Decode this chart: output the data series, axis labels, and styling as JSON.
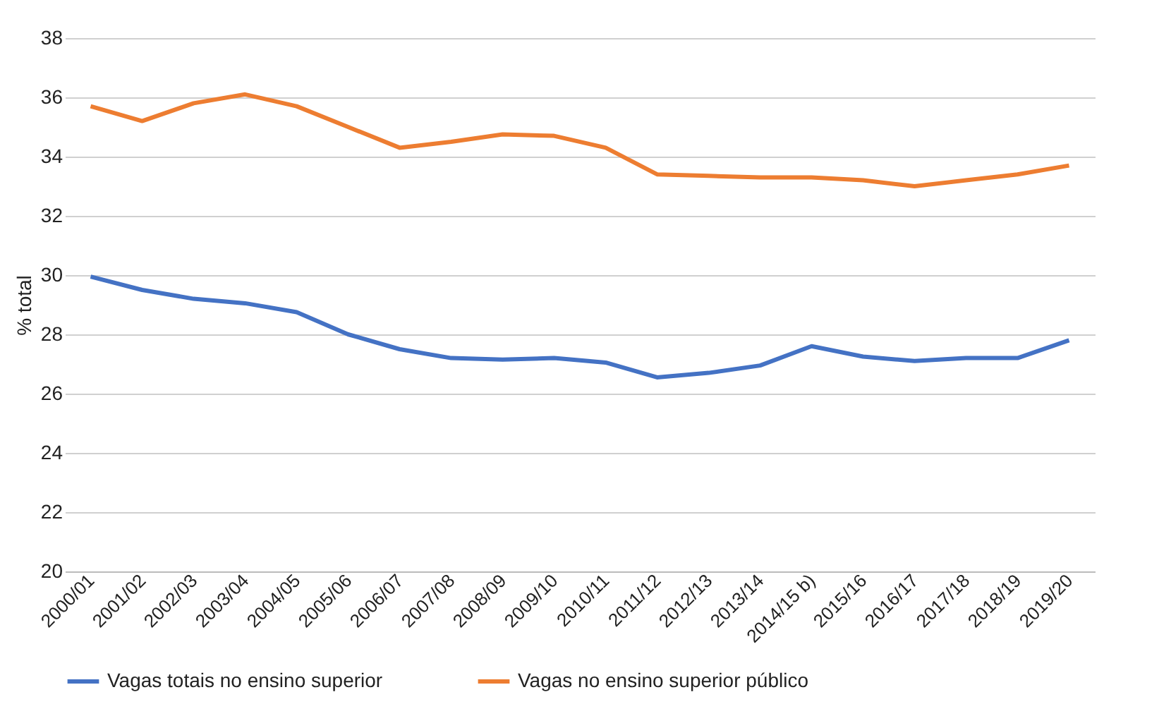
{
  "chart_data": {
    "type": "line",
    "ylabel": "% total",
    "categories": [
      "2000/01",
      "2001/02",
      "2002/03",
      "2003/04",
      "2004/05",
      "2005/06",
      "2006/07",
      "2007/08",
      "2008/09",
      "2009/10",
      "2010/11",
      "2011/12",
      "2012/13",
      "2013/14",
      "2014/15 b)",
      "2015/16",
      "2016/17",
      "2017/18",
      "2018/19",
      "2019/20"
    ],
    "series": [
      {
        "name": "Vagas totais no ensino superior",
        "color": "#4472c4",
        "values": [
          29.95,
          29.5,
          29.2,
          29.05,
          28.75,
          28.0,
          27.5,
          27.2,
          27.15,
          27.2,
          27.05,
          26.55,
          26.7,
          26.95,
          27.6,
          27.25,
          27.1,
          27.2,
          27.2,
          27.8
        ]
      },
      {
        "name": "Vagas no ensino superior público",
        "color": "#ed7d31",
        "values": [
          35.7,
          35.2,
          35.8,
          36.1,
          35.7,
          35.0,
          34.3,
          34.5,
          34.75,
          34.7,
          34.3,
          33.4,
          33.35,
          33.3,
          33.3,
          33.2,
          33.0,
          33.2,
          33.4,
          33.7
        ]
      }
    ],
    "ylim": [
      20,
      38
    ],
    "yticks": [
      20,
      22,
      24,
      26,
      28,
      30,
      32,
      34,
      36,
      38
    ],
    "grid": "y",
    "legend": "bottom",
    "marker": "none",
    "line_style": "solid"
  }
}
